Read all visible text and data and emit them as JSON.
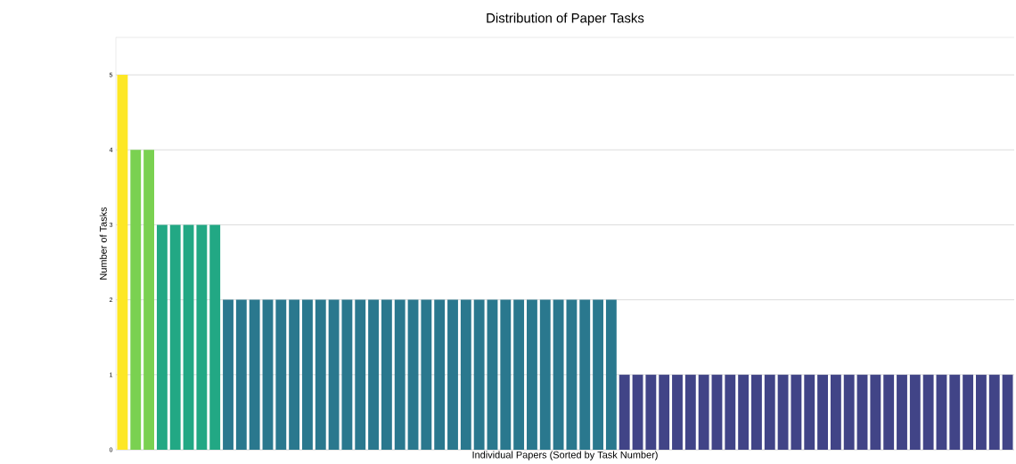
{
  "chart_data": {
    "type": "bar",
    "title": "Distribution of Paper Tasks",
    "xlabel": "Individual Papers (Sorted by Task Number)",
    "ylabel": "Number of Tasks",
    "categories": [
      null,
      null,
      null,
      null,
      null,
      null,
      null,
      null,
      null,
      null,
      null,
      null,
      null,
      null,
      null,
      null,
      null,
      null,
      null,
      null,
      null,
      null,
      null,
      null,
      null,
      null,
      null,
      null,
      null,
      null,
      null,
      null,
      null,
      null,
      null,
      null,
      null,
      null,
      null,
      null,
      null,
      null,
      null,
      null,
      null,
      null,
      null,
      null,
      null,
      null,
      null,
      null,
      null,
      null,
      null,
      null,
      null,
      null,
      null,
      null,
      null,
      null,
      null,
      null,
      null,
      null,
      null,
      null
    ],
    "values": [
      5,
      4,
      4,
      3,
      3,
      3,
      3,
      3,
      2,
      2,
      2,
      2,
      2,
      2,
      2,
      2,
      2,
      2,
      2,
      2,
      2,
      2,
      2,
      2,
      2,
      2,
      2,
      2,
      2,
      2,
      2,
      2,
      2,
      2,
      2,
      2,
      2,
      2,
      1,
      1,
      1,
      1,
      1,
      1,
      1,
      1,
      1,
      1,
      1,
      1,
      1,
      1,
      1,
      1,
      1,
      1,
      1,
      1,
      1,
      1,
      1,
      1,
      1,
      1,
      1,
      1,
      1,
      1
    ],
    "colors": [
      "#fde725",
      "#7ad151",
      "#7ad151",
      "#22a884",
      "#22a884",
      "#22a884",
      "#22a884",
      "#22a884",
      "#2a788e",
      "#2a788e",
      "#2a788e",
      "#2a788e",
      "#2a788e",
      "#2a788e",
      "#2a788e",
      "#2a788e",
      "#2a788e",
      "#2a788e",
      "#2a788e",
      "#2a788e",
      "#2a788e",
      "#2a788e",
      "#2a788e",
      "#2a788e",
      "#2a788e",
      "#2a788e",
      "#2a788e",
      "#2a788e",
      "#2a788e",
      "#2a788e",
      "#2a788e",
      "#2a788e",
      "#2a788e",
      "#2a788e",
      "#2a788e",
      "#2a788e",
      "#2a788e",
      "#2a788e",
      "#414487",
      "#414487",
      "#414487",
      "#414487",
      "#414487",
      "#414487",
      "#414487",
      "#414487",
      "#414487",
      "#414487",
      "#414487",
      "#414487",
      "#414487",
      "#414487",
      "#414487",
      "#414487",
      "#414487",
      "#414487",
      "#414487",
      "#414487",
      "#414487",
      "#414487",
      "#414487",
      "#414487",
      "#414487",
      "#414487",
      "#414487",
      "#414487",
      "#414487",
      "#414487"
    ],
    "ylim": [
      0,
      5.5
    ],
    "yticks": [
      0,
      1,
      2,
      3,
      4,
      5
    ],
    "grid": "y"
  }
}
